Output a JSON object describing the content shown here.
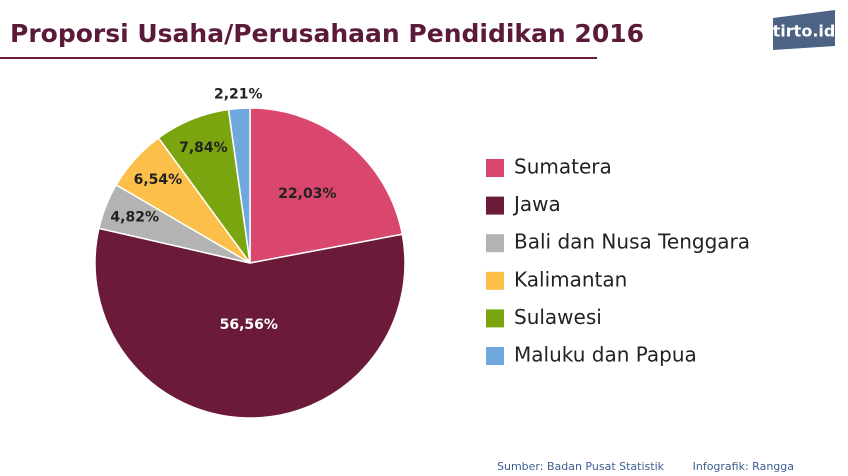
{
  "chart_data": {
    "type": "pie",
    "title": "Proporsi Usaha/Perusahaan Pendidikan 2016",
    "logo": "tirto.id",
    "categories": [
      "Sumatera",
      "Jawa",
      "Bali dan Nusa Tenggara",
      "Kalimantan",
      "Sulawesi",
      "Maluku dan Papua"
    ],
    "values": [
      22.03,
      56.56,
      4.82,
      6.54,
      7.84,
      2.21
    ],
    "value_labels": [
      "22,03%",
      "56,56%",
      "4,82%",
      "6,54%",
      "7,84%",
      "2,21%"
    ],
    "colors": [
      "#d9476e",
      "#6b1a3a",
      "#b3b3b3",
      "#fcc04a",
      "#7aa50f",
      "#6fa8dc"
    ],
    "legend": "right",
    "source": "Sumber: Badan Pusat Statistik",
    "credit": "Infografik: Rangga"
  }
}
